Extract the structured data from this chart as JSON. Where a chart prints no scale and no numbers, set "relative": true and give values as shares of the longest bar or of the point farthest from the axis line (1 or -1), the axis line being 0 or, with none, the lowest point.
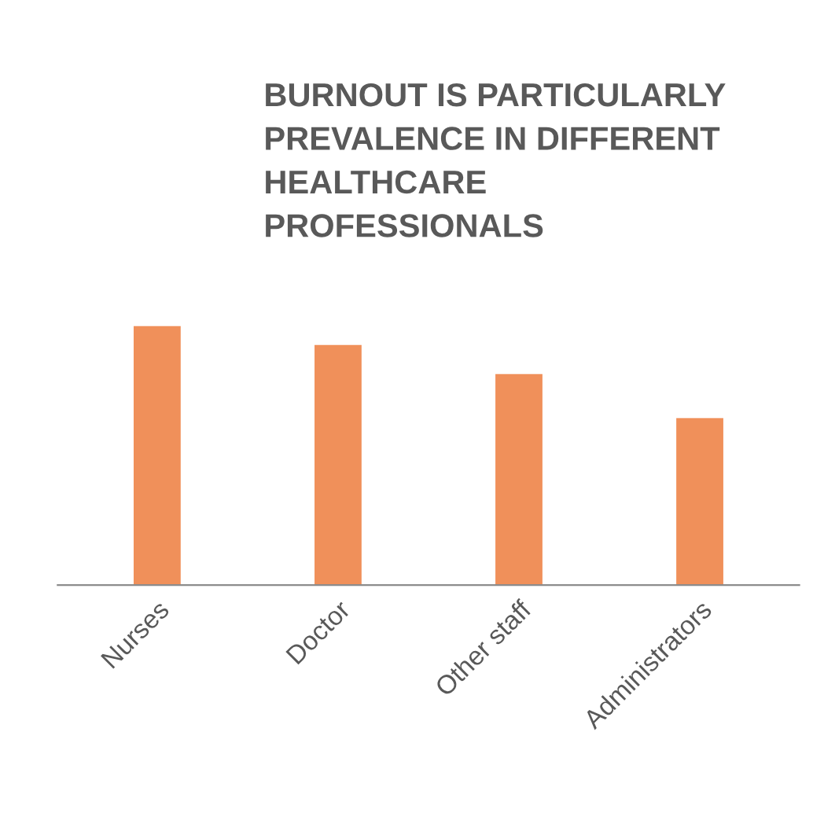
{
  "chart_data": {
    "type": "bar",
    "title": "BURNOUT IS PARTICULARLY\nPREVALENCE IN DIFFERENT\nHEALTHCARE\nPROFESSIONALS",
    "categories": [
      "Nurses",
      "Doctor",
      "Other staff",
      "Administrators"
    ],
    "values": [
      1,
      0.927,
      0.815,
      0.645
    ],
    "color": "#f0905a",
    "relative": true,
    "grid": false,
    "legend": false
  }
}
